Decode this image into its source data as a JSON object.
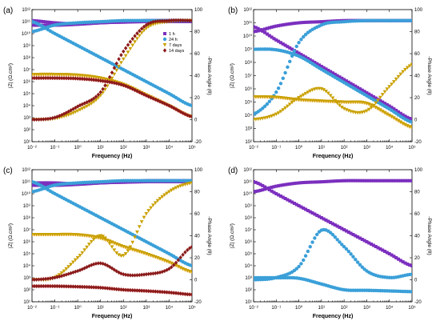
{
  "figure": {
    "panels": [
      "(a)",
      "(b)",
      "(c)",
      "(d)"
    ],
    "legend": [
      "1 h",
      "24 h",
      "7 days",
      "14 days"
    ]
  },
  "colors": {
    "1 h": "#7b2fbe",
    "24 h": "#3b9fd8",
    "7 days": "#c9a000",
    "14 days": "#8b1a1a",
    "magnitude_1h_shade": "#ff66ff",
    "magnitude_24h_shade": "#00e5ff",
    "magnitude_7d_shade": "#ff9900",
    "magnitude_14d_shade": "#ff3333"
  },
  "chart_data": [
    {
      "panel": "(a)",
      "type": "scatter",
      "xlabel": "Frequency (Hz)",
      "ylabel_left": "|Z| (Ω.cm²)",
      "ylabel_right": "-Phase Angle (θ)",
      "x_scale": "log",
      "xlim": [
        0.01,
        100000
      ],
      "y_left_scale": "log",
      "y_left_lim": [
        10,
        1000000000000.0
      ],
      "y_right_lim": [
        -20,
        100
      ],
      "x_ticks": [
        "10⁻²",
        "10⁻¹",
        "10⁰",
        "10¹",
        "10²",
        "10³",
        "10⁴",
        "10⁵"
      ],
      "y_left_ticks": [
        "10¹",
        "10²",
        "10³",
        "10⁴",
        "10⁵",
        "10⁶",
        "10⁷",
        "10⁸",
        "10⁹",
        "10¹⁰",
        "10¹¹",
        "10¹²"
      ],
      "y_right_ticks": [
        "-20",
        "0",
        "20",
        "40",
        "60",
        "80",
        "100"
      ],
      "legend_position": "top-right",
      "series": [
        {
          "name": "1 h",
          "axis": "magnitude",
          "x": [
            0.01,
            0.1,
            1,
            10,
            100,
            1000,
            10000,
            100000
          ],
          "y": [
            50000000000.0,
            50000000000.0,
            60000000000.0,
            80000000000.0,
            90000000000.0,
            100000000000.0,
            100000000000.0,
            100000000000.0
          ]
        },
        {
          "name": "1 h",
          "axis": "phase",
          "x": [
            0.01,
            0.1,
            1,
            10,
            100,
            1000,
            10000,
            100000
          ],
          "y": [
            90,
            88,
            87,
            88,
            89,
            90,
            90,
            90
          ]
        },
        {
          "name": "24 h",
          "axis": "magnitude",
          "x": [
            0.01,
            0.1,
            1,
            10,
            100,
            1000,
            10000,
            100000
          ],
          "y": [
            100000000000.0,
            10000000000.0,
            1000000000.0,
            100000000.0,
            10000000.0,
            1000000.0,
            100000.0,
            10000.0
          ]
        },
        {
          "name": "24 h",
          "axis": "phase",
          "x": [
            0.01,
            0.1,
            1,
            10,
            100,
            1000,
            10000,
            100000
          ],
          "y": [
            80,
            86,
            88,
            89,
            90,
            90,
            90,
            90
          ]
        },
        {
          "name": "7 days",
          "axis": "magnitude",
          "x": [
            0.01,
            0.1,
            1,
            10,
            100,
            1000,
            10000,
            100000
          ],
          "y": [
            4000000.0,
            4000000.0,
            3500000.0,
            2000000.0,
            600000.0,
            80000.0,
            10000.0,
            1200.0
          ]
        },
        {
          "name": "7 days",
          "axis": "phase",
          "x": [
            0.01,
            0.1,
            1,
            10,
            100,
            1000,
            10000,
            100000
          ],
          "y": [
            0,
            1,
            8,
            22,
            55,
            83,
            89,
            90
          ]
        },
        {
          "name": "14 days",
          "axis": "magnitude",
          "x": [
            0.01,
            0.1,
            1,
            10,
            100,
            1000,
            10000,
            100000
          ],
          "y": [
            2000000.0,
            2000000.0,
            1800000.0,
            1200000.0,
            500000.0,
            70000.0,
            10000.0,
            1200.0
          ]
        },
        {
          "name": "14 days",
          "axis": "phase",
          "x": [
            0.01,
            0.1,
            1,
            10,
            100,
            1000,
            10000,
            100000
          ],
          "y": [
            0,
            2,
            12,
            25,
            62,
            86,
            90,
            90
          ]
        }
      ]
    },
    {
      "panel": "(b)",
      "type": "scatter",
      "xlabel": "Frequency (Hz)",
      "ylabel_left": "|Z| (Ω.cm²)",
      "ylabel_right": "-Phase Angle (θ)",
      "x_scale": "log",
      "xlim": [
        0.01,
        100000
      ],
      "y_left_scale": "log",
      "y_left_lim": [
        100,
        1000000000000.0
      ],
      "y_right_lim": [
        -20,
        100
      ],
      "x_ticks": [
        "10⁻²",
        "10⁻¹",
        "10⁰",
        "10¹",
        "10²",
        "10³",
        "10⁴",
        "10⁵"
      ],
      "y_left_ticks": [
        "10²",
        "10³",
        "10⁴",
        "10⁵",
        "10⁶",
        "10⁷",
        "10⁸",
        "10⁹",
        "10¹⁰",
        "10¹¹",
        "10¹²"
      ],
      "y_right_ticks": [
        "-20",
        "0",
        "20",
        "40",
        "60",
        "80",
        "100"
      ],
      "series": [
        {
          "name": "1 h",
          "axis": "magnitude",
          "x": [
            0.01,
            0.1,
            1,
            10,
            100,
            1000,
            10000,
            100000
          ],
          "y": [
            50000000000.0,
            5000000000.0,
            500000000.0,
            50000000.0,
            5000000.0,
            500000.0,
            50000.0,
            5000.0
          ]
        },
        {
          "name": "1 h",
          "axis": "phase",
          "x": [
            0.01,
            0.1,
            1,
            10,
            100,
            1000,
            10000,
            100000
          ],
          "y": [
            80,
            85,
            88,
            89,
            90,
            90,
            90,
            90
          ]
        },
        {
          "name": "24 h",
          "axis": "magnitude",
          "x": [
            0.01,
            0.1,
            1,
            10,
            100,
            1000,
            10000,
            100000
          ],
          "y": [
            1000000000.0,
            900000000.0,
            300000000.0,
            30000000.0,
            3000000.0,
            300000.0,
            30000.0,
            3000.0
          ]
        },
        {
          "name": "24 h",
          "axis": "phase",
          "x": [
            0.01,
            0.1,
            1,
            10,
            100,
            1000,
            10000,
            100000
          ],
          "y": [
            5,
            25,
            70,
            86,
            89,
            90,
            90,
            90
          ]
        },
        {
          "name": "7 days",
          "axis": "magnitude",
          "x": [
            0.01,
            0.1,
            1,
            10,
            100,
            1000,
            10000,
            100000
          ],
          "y": [
            250000.0,
            230000.0,
            150000.0,
            120000.0,
            100000.0,
            80000.0,
            10000.0,
            1200.0
          ]
        },
        {
          "name": "7 days",
          "axis": "phase",
          "x": [
            0.01,
            0.1,
            1,
            10,
            100,
            1000,
            10000,
            100000
          ],
          "y": [
            0,
            5,
            20,
            28,
            10,
            8,
            30,
            50
          ]
        }
      ]
    },
    {
      "panel": "(c)",
      "type": "scatter",
      "xlabel": "Frequency (Hz)",
      "ylabel_left": "|Z| (Ω.cm²)",
      "ylabel_right": "-Phase Angle (θ)",
      "x_scale": "log",
      "xlim": [
        0.01,
        100000
      ],
      "y_left_scale": "log",
      "y_left_lim": [
        10,
        1000000000000.0
      ],
      "y_right_lim": [
        -20,
        100
      ],
      "x_ticks": [
        "10⁻²",
        "10⁻¹",
        "10⁰",
        "10¹",
        "10²",
        "10³",
        "10⁴",
        "10⁵"
      ],
      "y_left_ticks": [
        "10¹",
        "10²",
        "10³",
        "10⁴",
        "10⁵",
        "10⁶",
        "10⁷",
        "10⁸",
        "10⁹",
        "10¹⁰",
        "10¹¹",
        "10¹²"
      ],
      "y_right_ticks": [
        "-20",
        "0",
        "20",
        "40",
        "60",
        "80",
        "100"
      ],
      "series": [
        {
          "name": "1 h",
          "axis": "magnitude",
          "x": [
            0.01,
            0.1,
            1,
            10,
            100,
            1000,
            10000,
            100000
          ],
          "y": [
            50000000000.0,
            50000000000.0,
            60000000000.0,
            80000000000.0,
            90000000000.0,
            100000000000.0,
            100000000000.0,
            100000000000.0
          ]
        },
        {
          "name": "1 h",
          "axis": "phase",
          "x": [
            0.01,
            0.1,
            1,
            10,
            100,
            1000,
            10000,
            100000
          ],
          "y": [
            88,
            88,
            87,
            88,
            89,
            90,
            90,
            90
          ]
        },
        {
          "name": "24 h",
          "axis": "magnitude",
          "x": [
            0.01,
            0.1,
            1,
            10,
            100,
            1000,
            10000,
            100000
          ],
          "y": [
            100000000000.0,
            10000000000.0,
            1000000000.0,
            100000000.0,
            10000000.0,
            1000000.0,
            100000.0,
            10000.0
          ]
        },
        {
          "name": "24 h",
          "axis": "phase",
          "x": [
            0.01,
            0.1,
            1,
            10,
            100,
            1000,
            10000,
            100000
          ],
          "y": [
            80,
            86,
            88,
            89,
            90,
            90,
            90,
            90
          ]
        },
        {
          "name": "7 days",
          "axis": "magnitude",
          "x": [
            0.01,
            0.1,
            1,
            10,
            100,
            1000,
            10000,
            100000
          ],
          "y": [
            4000000.0,
            4000000.0,
            3800000.0,
            2000000.0,
            400000.0,
            100000.0,
            20000.0,
            3000.0
          ]
        },
        {
          "name": "7 days",
          "axis": "phase",
          "x": [
            0.01,
            0.1,
            1,
            10,
            100,
            1000,
            10000,
            100000
          ],
          "y": [
            0,
            2,
            20,
            40,
            22,
            60,
            80,
            88
          ]
        },
        {
          "name": "14 days",
          "axis": "magnitude",
          "x": [
            0.01,
            0.1,
            1,
            10,
            100,
            1000,
            10000,
            100000
          ],
          "y": [
            200,
            200,
            180,
            150,
            100,
            80,
            60,
            40
          ]
        },
        {
          "name": "14 days",
          "axis": "phase",
          "x": [
            0.01,
            0.1,
            1,
            10,
            100,
            1000,
            10000,
            100000
          ],
          "y": [
            0,
            2,
            8,
            15,
            5,
            5,
            10,
            30
          ]
        }
      ]
    },
    {
      "panel": "(d)",
      "type": "scatter",
      "xlabel": "Frequency (Hz)",
      "ylabel_left": "|Z| (Ω.cm²)",
      "ylabel_right": "-Phase Angle (θ)",
      "x_scale": "log",
      "xlim": [
        0.01,
        100000
      ],
      "y_left_scale": "log",
      "y_left_lim": [
        10,
        1000000000000.0
      ],
      "y_right_lim": [
        -20,
        100
      ],
      "x_ticks": [
        "10⁻²",
        "10⁻¹",
        "10⁰",
        "10¹",
        "10²",
        "10³",
        "10⁴",
        "10⁵"
      ],
      "y_left_ticks": [
        "10¹",
        "10²",
        "10³",
        "10⁴",
        "10⁵",
        "10⁶",
        "10⁷",
        "10⁸",
        "10⁹",
        "10¹⁰",
        "10¹¹",
        "10¹²"
      ],
      "y_right_ticks": [
        "-20",
        "0",
        "20",
        "40",
        "60",
        "80",
        "100"
      ],
      "series": [
        {
          "name": "1 h",
          "axis": "magnitude",
          "x": [
            0.01,
            0.1,
            1,
            10,
            100,
            1000,
            10000,
            100000
          ],
          "y": [
            100000000000.0,
            10000000000.0,
            1000000000.0,
            100000000.0,
            10000000.0,
            1000000.0,
            100000.0,
            10000.0
          ]
        },
        {
          "name": "1 h",
          "axis": "phase",
          "x": [
            0.01,
            0.1,
            1,
            10,
            100,
            1000,
            10000,
            100000
          ],
          "y": [
            80,
            85,
            88,
            89,
            90,
            90,
            90,
            90
          ]
        },
        {
          "name": "24 h",
          "axis": "magnitude",
          "x": [
            0.01,
            0.1,
            1,
            10,
            100,
            1000,
            10000,
            100000
          ],
          "y": [
            1000,
            1000,
            900,
            300,
            100,
            90,
            80,
            70
          ]
        },
        {
          "name": "24 h",
          "axis": "phase",
          "x": [
            0.01,
            0.1,
            1,
            10,
            100,
            1000,
            10000,
            100000
          ],
          "y": [
            0,
            2,
            12,
            45,
            30,
            8,
            2,
            5
          ]
        }
      ]
    }
  ]
}
